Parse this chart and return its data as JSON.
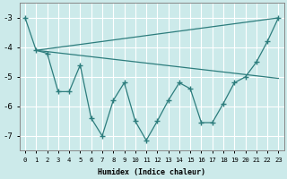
{
  "xlabel": "Humidex (Indice chaleur)",
  "ylabel": "",
  "background_color": "#cceaea",
  "grid_color": "#ffffff",
  "line_color": "#2d7d7d",
  "xlim": [
    -0.5,
    23.5
  ],
  "ylim": [
    -7.5,
    -2.5
  ],
  "xticks": [
    0,
    1,
    2,
    3,
    4,
    5,
    6,
    7,
    8,
    9,
    10,
    11,
    12,
    13,
    14,
    15,
    16,
    17,
    18,
    19,
    20,
    21,
    22,
    23
  ],
  "yticks": [
    -7,
    -6,
    -5,
    -4,
    -3
  ],
  "zigzag_x": [
    0,
    1,
    2,
    3,
    4,
    5,
    6,
    7,
    8,
    9,
    10,
    11,
    12,
    13,
    14,
    15,
    16,
    17,
    18,
    19,
    20,
    21,
    22,
    23
  ],
  "zigzag_y": [
    -3.0,
    -4.1,
    -4.2,
    -5.5,
    -5.5,
    -4.6,
    -6.4,
    -7.0,
    -5.8,
    -5.2,
    -6.5,
    -7.15,
    -6.5,
    -5.8,
    -5.2,
    -5.4,
    -6.55,
    -6.55,
    -5.9,
    -5.2,
    -5.0,
    -4.5,
    -3.8,
    -3.0
  ],
  "line2_x": [
    1,
    23
  ],
  "line2_y": [
    -4.1,
    -3.0
  ],
  "line3_x": [
    1,
    23
  ],
  "line3_y": [
    -4.1,
    -5.05
  ]
}
